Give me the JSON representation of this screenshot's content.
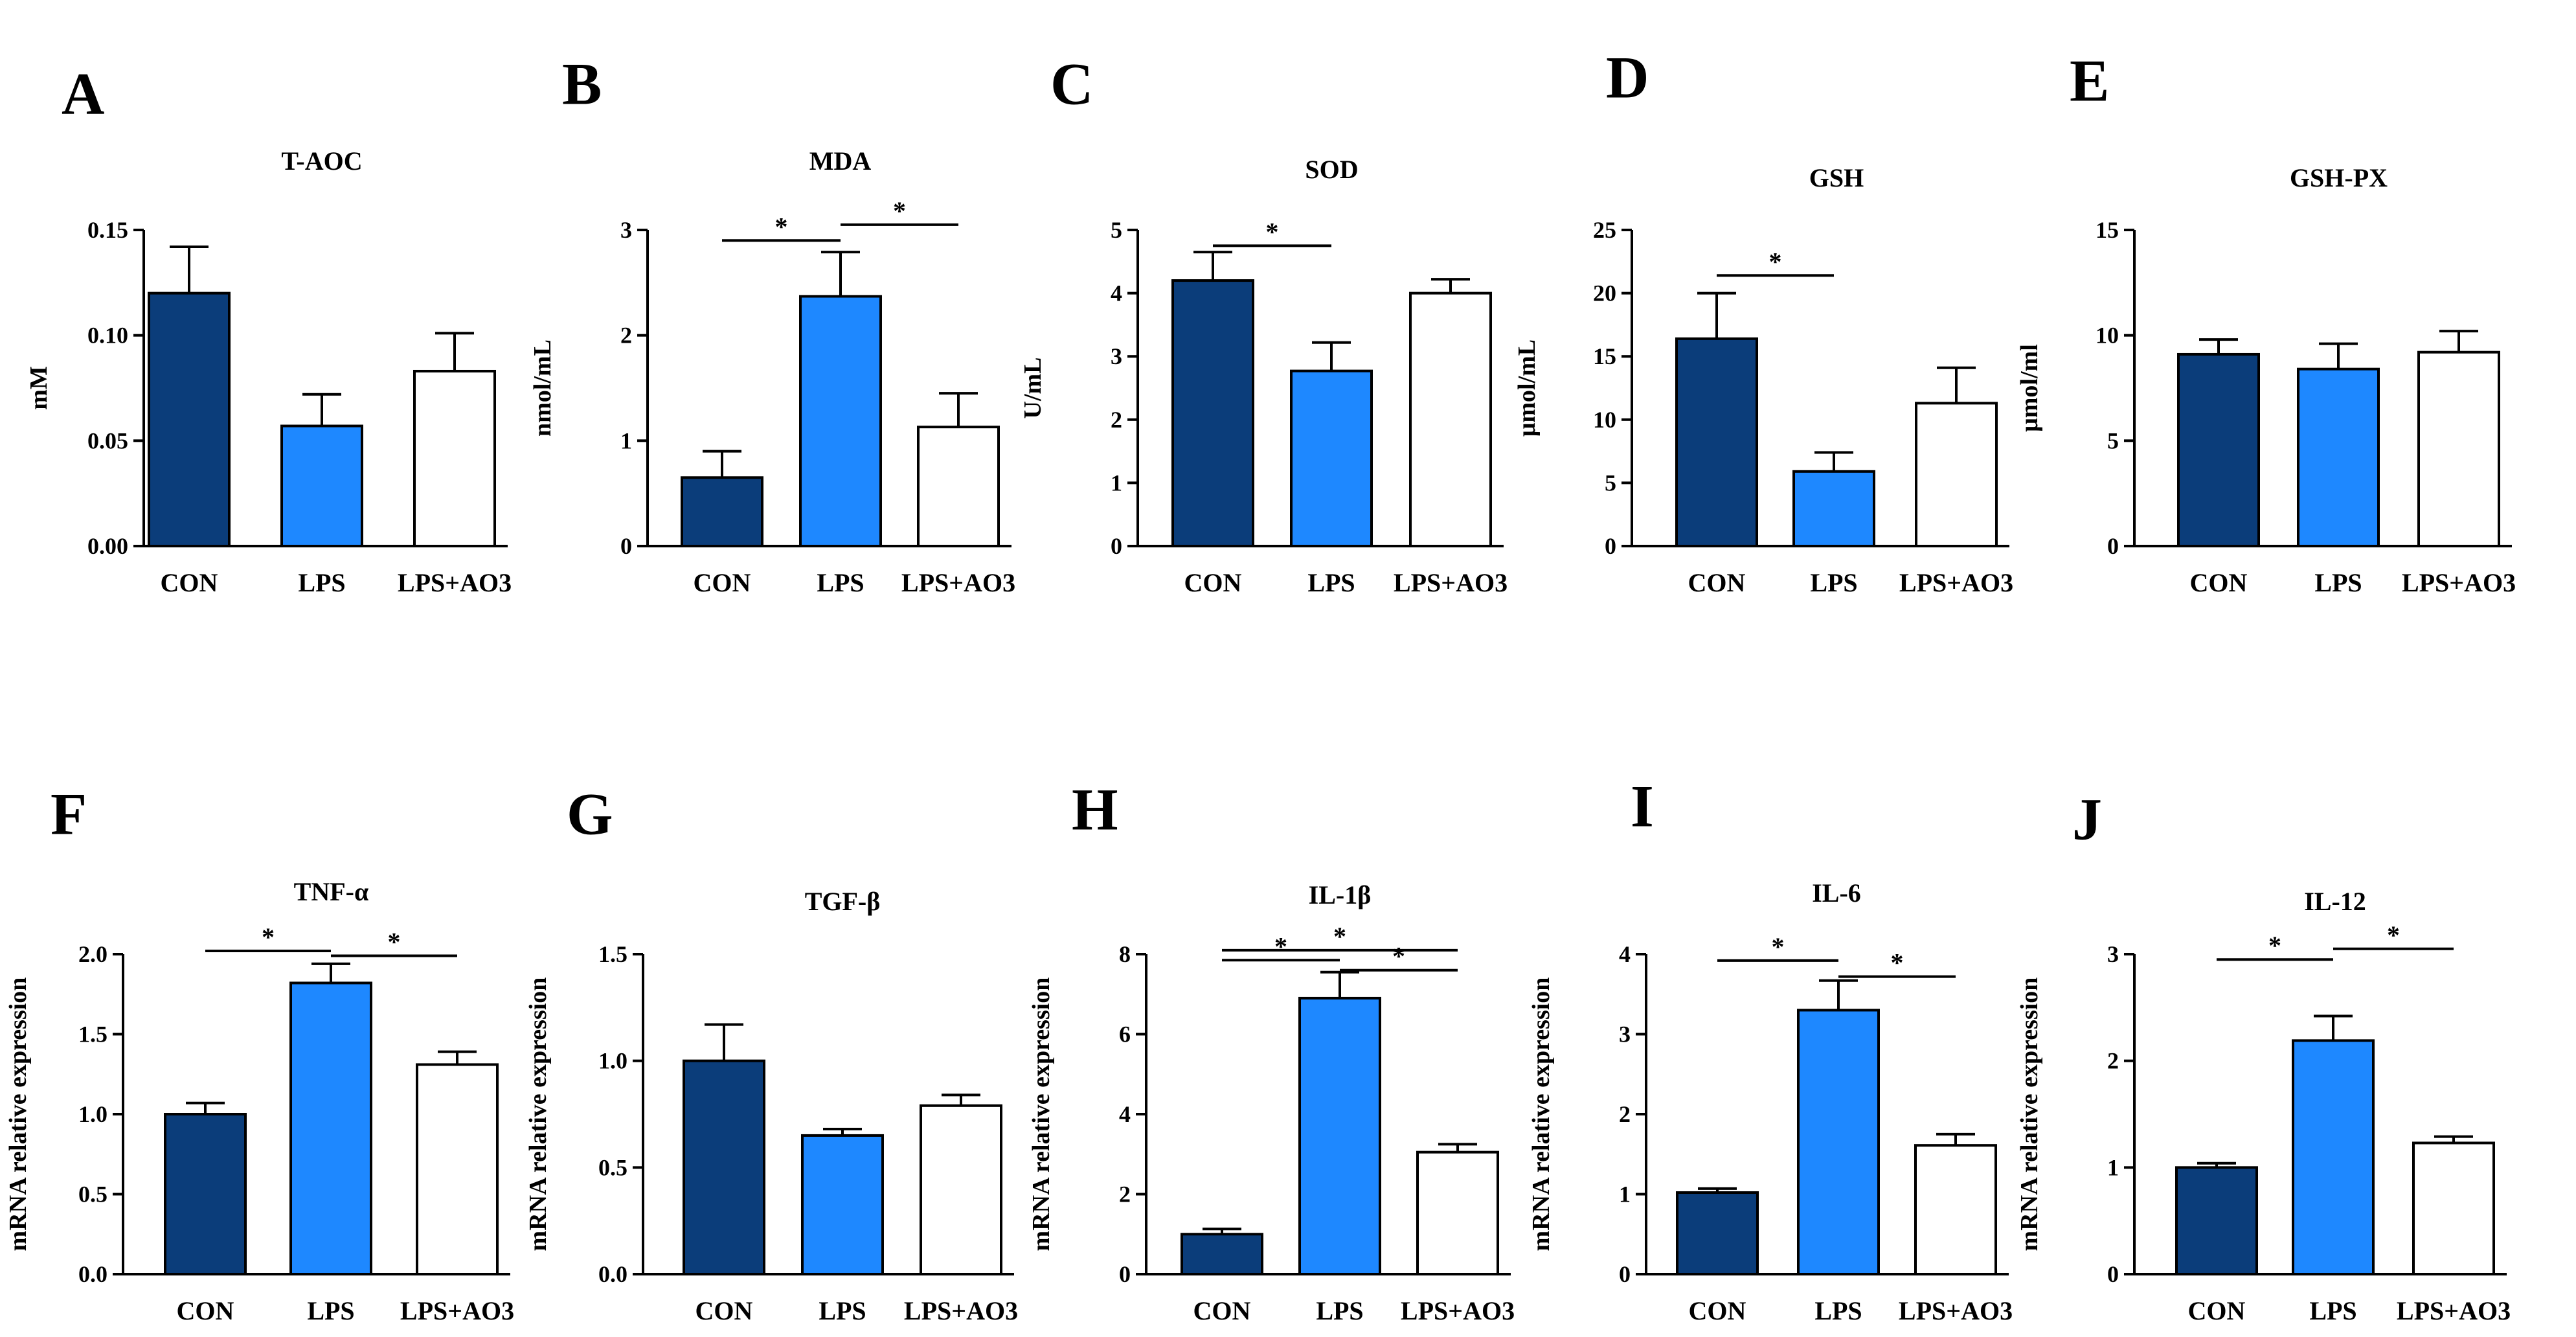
{
  "figure": {
    "colors": {
      "CON": "#0b3d7a",
      "LPS": "#1e88ff",
      "LPS+AO3": "#ffffff",
      "outline": "#000000"
    },
    "panels": [
      {
        "letter": "A"
      },
      {
        "letter": "B"
      },
      {
        "letter": "C"
      },
      {
        "letter": "D"
      },
      {
        "letter": "E"
      },
      {
        "letter": "F"
      },
      {
        "letter": "G"
      },
      {
        "letter": "H"
      },
      {
        "letter": "I"
      },
      {
        "letter": "J"
      }
    ]
  },
  "chart_data": [
    {
      "type": "bar",
      "title": "T-AOC",
      "ylabel": "mM",
      "categories": [
        "CON",
        "LPS",
        "LPS+AO3"
      ],
      "values": [
        0.12,
        0.057,
        0.083
      ],
      "errors": [
        0.022,
        0.015,
        0.018
      ],
      "ylim": [
        0,
        0.15
      ],
      "yticks": [
        0,
        0.05,
        0.1,
        0.15
      ],
      "ytick_labels": [
        "0.00",
        "0.05",
        "0.10",
        "0.15"
      ],
      "significance": []
    },
    {
      "type": "bar",
      "title": "MDA",
      "ylabel": "nmol/mL",
      "categories": [
        "CON",
        "LPS",
        "LPS+AO3"
      ],
      "values": [
        0.65,
        2.37,
        1.13
      ],
      "errors": [
        0.25,
        0.42,
        0.32
      ],
      "ylim": [
        0,
        3
      ],
      "yticks": [
        0,
        1,
        2,
        3
      ],
      "ytick_labels": [
        "0",
        "1",
        "2",
        "3"
      ],
      "significance": [
        {
          "from": 0,
          "to": 1,
          "y": 2.9,
          "label": "*"
        },
        {
          "from": 1,
          "to": 2,
          "y": 3.05,
          "label": "*"
        }
      ]
    },
    {
      "type": "bar",
      "title": "SOD",
      "ylabel": "U/mL",
      "categories": [
        "CON",
        "LPS",
        "LPS+AO3"
      ],
      "values": [
        4.2,
        2.77,
        4.0
      ],
      "errors": [
        0.45,
        0.45,
        0.22
      ],
      "ylim": [
        0,
        5
      ],
      "yticks": [
        0,
        1,
        2,
        3,
        4,
        5
      ],
      "ytick_labels": [
        "0",
        "1",
        "2",
        "3",
        "4",
        "5"
      ],
      "significance": [
        {
          "from": 0,
          "to": 1,
          "y": 4.75,
          "label": "*"
        }
      ]
    },
    {
      "type": "bar",
      "title": "GSH",
      "ylabel": "μmol/mL",
      "categories": [
        "CON",
        "LPS",
        "LPS+AO3"
      ],
      "values": [
        16.4,
        5.9,
        11.3
      ],
      "errors": [
        3.6,
        1.5,
        2.8
      ],
      "ylim": [
        0,
        25
      ],
      "yticks": [
        0,
        5,
        10,
        15,
        20,
        25
      ],
      "ytick_labels": [
        "0",
        "5",
        "10",
        "15",
        "20",
        "25"
      ],
      "significance": [
        {
          "from": 0,
          "to": 1,
          "y": 21.4,
          "label": "*"
        }
      ]
    },
    {
      "type": "bar",
      "title": "GSH-PX",
      "ylabel": "μmol/ml",
      "categories": [
        "CON",
        "LPS",
        "LPS+AO3"
      ],
      "values": [
        9.1,
        8.4,
        9.2
      ],
      "errors": [
        0.7,
        1.2,
        1.0
      ],
      "ylim": [
        0,
        15
      ],
      "yticks": [
        0,
        5,
        10,
        15
      ],
      "ytick_labels": [
        "0",
        "5",
        "10",
        "15"
      ],
      "significance": []
    },
    {
      "type": "bar",
      "title": "TNF-α",
      "ylabel": "mRNA relative expression",
      "categories": [
        "CON",
        "LPS",
        "LPS+AO3"
      ],
      "values": [
        1.0,
        1.82,
        1.31
      ],
      "errors": [
        0.07,
        0.12,
        0.08
      ],
      "ylim": [
        0,
        2.0
      ],
      "yticks": [
        0,
        0.5,
        1.0,
        1.5,
        2.0
      ],
      "ytick_labels": [
        "0.0",
        "0.5",
        "1.0",
        "1.5",
        "2.0"
      ],
      "significance": [
        {
          "from": 0,
          "to": 1,
          "y": 2.02,
          "label": "*"
        },
        {
          "from": 1,
          "to": 2,
          "y": 1.99,
          "label": "*"
        }
      ]
    },
    {
      "type": "bar",
      "title": "TGF-β",
      "ylabel": "mRNA relative expression",
      "categories": [
        "CON",
        "LPS",
        "LPS+AO3"
      ],
      "values": [
        1.0,
        0.65,
        0.79
      ],
      "errors": [
        0.17,
        0.03,
        0.05
      ],
      "ylim": [
        0,
        1.5
      ],
      "yticks": [
        0,
        0.5,
        1.0,
        1.5
      ],
      "ytick_labels": [
        "0.0",
        "0.5",
        "1.0",
        "1.5"
      ],
      "significance": []
    },
    {
      "type": "bar",
      "title": "IL-1β",
      "ylabel": "mRNA relative expression",
      "categories": [
        "CON",
        "LPS",
        "LPS+AO3"
      ],
      "values": [
        1.0,
        6.9,
        3.05
      ],
      "errors": [
        0.13,
        0.65,
        0.2
      ],
      "ylim": [
        0,
        8
      ],
      "yticks": [
        0,
        2,
        4,
        6,
        8
      ],
      "ytick_labels": [
        "0",
        "2",
        "4",
        "6",
        "8"
      ],
      "significance": [
        {
          "from": 0,
          "to": 2,
          "y": 8.1,
          "label": "*"
        },
        {
          "from": 0,
          "to": 1,
          "y": 7.85,
          "label": "*"
        },
        {
          "from": 1,
          "to": 2,
          "y": 7.6,
          "label": "*"
        }
      ]
    },
    {
      "type": "bar",
      "title": "IL-6",
      "ylabel": "mRNA relative expression",
      "categories": [
        "CON",
        "LPS",
        "LPS+AO3"
      ],
      "values": [
        1.02,
        3.3,
        1.61
      ],
      "errors": [
        0.05,
        0.37,
        0.14
      ],
      "ylim": [
        0,
        4
      ],
      "yticks": [
        0,
        1,
        2,
        3,
        4
      ],
      "ytick_labels": [
        "0",
        "1",
        "2",
        "3",
        "4"
      ],
      "significance": [
        {
          "from": 0,
          "to": 1,
          "y": 3.92,
          "label": "*"
        },
        {
          "from": 1,
          "to": 2,
          "y": 3.72,
          "label": "*"
        }
      ]
    },
    {
      "type": "bar",
      "title": "IL-12",
      "ylabel": "mRNA relative expression",
      "categories": [
        "CON",
        "LPS",
        "LPS+AO3"
      ],
      "values": [
        1.0,
        2.19,
        1.23
      ],
      "errors": [
        0.04,
        0.23,
        0.06
      ],
      "ylim": [
        0,
        3
      ],
      "yticks": [
        0,
        1,
        2,
        3
      ],
      "ytick_labels": [
        "0",
        "1",
        "2",
        "3"
      ],
      "significance": [
        {
          "from": 0,
          "to": 1,
          "y": 2.95,
          "label": "*"
        },
        {
          "from": 1,
          "to": 2,
          "y": 3.05,
          "label": "*"
        }
      ]
    }
  ]
}
